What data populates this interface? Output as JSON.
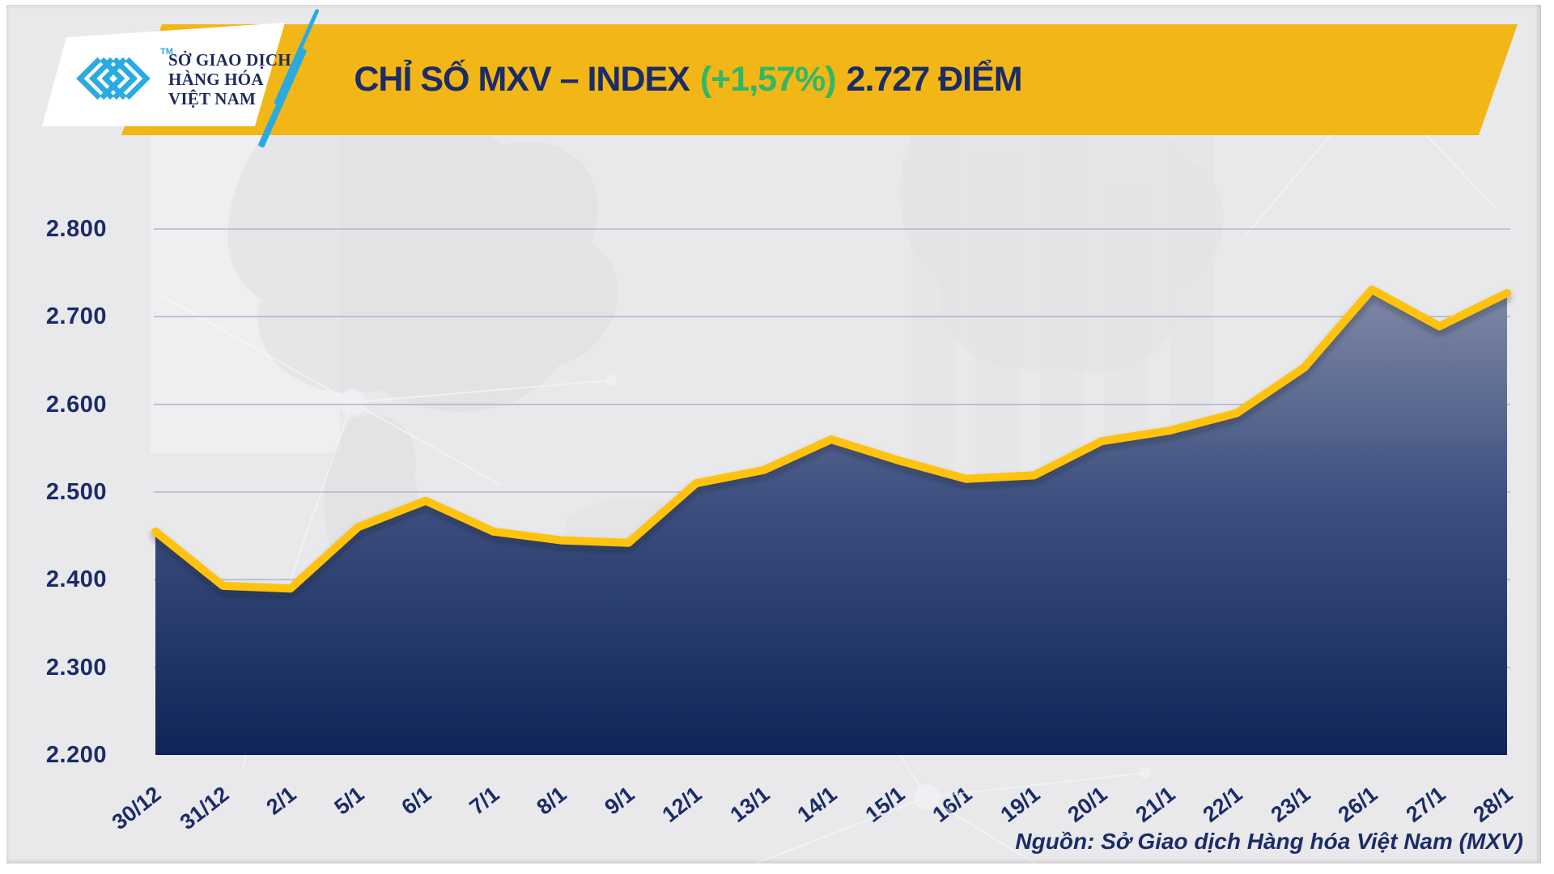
{
  "header": {
    "logo": {
      "line1": "SỞ GIAO DỊCH",
      "line2": "HÀNG HÓA",
      "line3": "VIỆT NAM",
      "tm": "TM"
    },
    "title": {
      "prefix": "CHỈ SỐ MXV – INDEX",
      "gain": "(+1,57%)",
      "suffix": "2.727 ĐIỂM"
    }
  },
  "chart_data": {
    "type": "area",
    "title": "CHỈ SỐ MXV – INDEX (+1,57%) 2.727 ĐIỂM",
    "change_percent": "+1,57%",
    "last_value_label": "2.727",
    "categories": [
      "30/12",
      "31/12",
      "2/1",
      "5/1",
      "6/1",
      "7/1",
      "8/1",
      "9/1",
      "12/1",
      "13/1",
      "14/1",
      "15/1",
      "16/1",
      "19/1",
      "20/1",
      "21/1",
      "22/1",
      "23/1",
      "26/1",
      "27/1",
      "28/1"
    ],
    "values": [
      2455,
      2393,
      2390,
      2460,
      2490,
      2455,
      2445,
      2442,
      2510,
      2525,
      2560,
      2536,
      2515,
      2519,
      2558,
      2570,
      2590,
      2642,
      2731,
      2689,
      2727
    ],
    "ylim": [
      2200,
      2800
    ],
    "ytick_values": [
      2200,
      2300,
      2400,
      2500,
      2600,
      2700,
      2800
    ],
    "ytick_labels": [
      "2.200",
      "2.300",
      "2.400",
      "2.500",
      "2.600",
      "2.700",
      "2.800"
    ],
    "grid": "horizontal-only",
    "legend": "none",
    "xlabel": "",
    "ylabel": ""
  },
  "source": {
    "text": "Nguồn: Sở Giao dịch Hàng hóa Việt Nam (MXV)"
  },
  "colors": {
    "banner_yellow": "#F2B616",
    "title_navy": "#1B2C68",
    "gain_green": "#2FB866",
    "line_yellow": "#FFC20D",
    "area_top": "#7F89A6",
    "area_mid": "#3D5080",
    "area_bottom": "#102457",
    "axis_navy": "#1B2C68",
    "grid_gray": "#AFB9CF",
    "logo_cyan": "#29ABE2",
    "background": "#E9E9EB"
  }
}
